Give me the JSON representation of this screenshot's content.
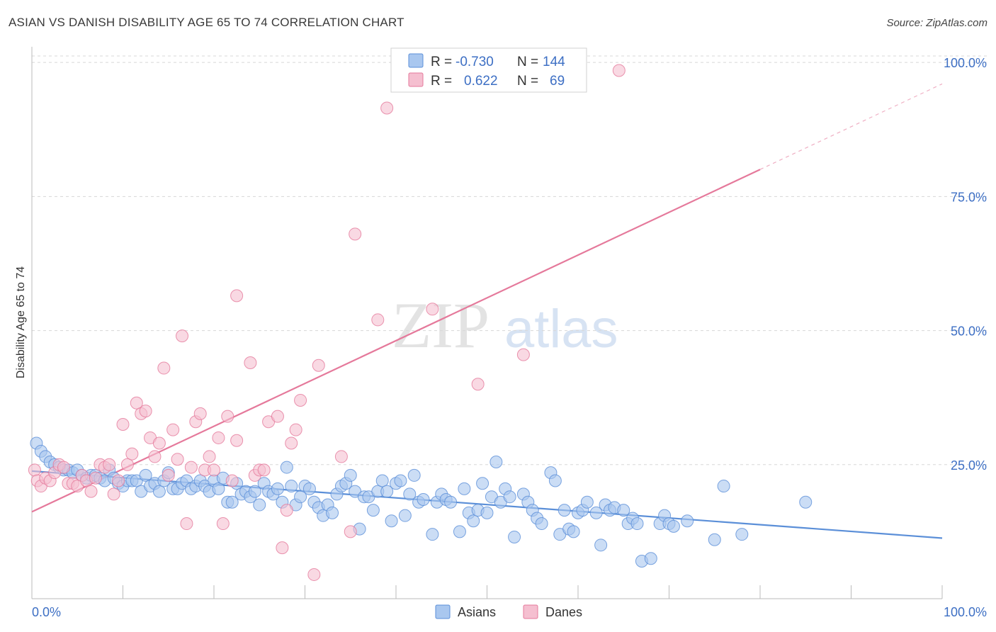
{
  "header": {
    "title": "ASIAN VS DANISH DISABILITY AGE 65 TO 74 CORRELATION CHART",
    "source": "Source: ZipAtlas.com"
  },
  "watermark": {
    "part1": "ZIP",
    "part2": "atlas"
  },
  "colors": {
    "asian": "#5b8fd8",
    "asian_fill": "#a9c7ef",
    "danish": "#e5799b",
    "danish_fill": "#f5bfd0",
    "value_text": "#3d6fc4",
    "grid": "#d8d8d8"
  },
  "legend_stats": {
    "rows": [
      {
        "r_label": "R =",
        "r_value": "-0.730",
        "n_label": "N =",
        "n_value": "144"
      },
      {
        "r_label": "R =",
        "r_value": "0.622",
        "n_label": "N =",
        "n_value": "69"
      }
    ]
  },
  "chart_data": {
    "type": "scatter",
    "title": "ASIAN VS DANISH DISABILITY AGE 65 TO 74 CORRELATION CHART",
    "xlabel": "",
    "ylabel": "Disability Age 65 to 74",
    "xlim": [
      0,
      100
    ],
    "ylim": [
      0,
      102
    ],
    "x_tick_labels": [
      "0.0%",
      "100.0%"
    ],
    "y_tick_labels": [
      "25.0%",
      "50.0%",
      "75.0%",
      "100.0%"
    ],
    "y_ticks": [
      25,
      50,
      75,
      100
    ],
    "grid": true,
    "legend_position": "bottom-center",
    "series": [
      {
        "name": "Asians",
        "r": -0.73,
        "n": 144,
        "trend": {
          "x0": 0,
          "y0": 23.8,
          "x1": 100,
          "y1": 11.3,
          "dashed_from": null
        },
        "points": [
          [
            0.5,
            29
          ],
          [
            1,
            27.5
          ],
          [
            1.5,
            26.5
          ],
          [
            2,
            25.5
          ],
          [
            2.5,
            25
          ],
          [
            3,
            24.5
          ],
          [
            3.5,
            24
          ],
          [
            4,
            24
          ],
          [
            4.5,
            23.5
          ],
          [
            5,
            24
          ],
          [
            5.5,
            23
          ],
          [
            6,
            22.5
          ],
          [
            6.5,
            23
          ],
          [
            7,
            23
          ],
          [
            7.5,
            22.5
          ],
          [
            8,
            22
          ],
          [
            8.5,
            24
          ],
          [
            9,
            22.5
          ],
          [
            9.5,
            21.5
          ],
          [
            10,
            21
          ],
          [
            10.5,
            22
          ],
          [
            11,
            22
          ],
          [
            11.5,
            22
          ],
          [
            12,
            20
          ],
          [
            12.5,
            23
          ],
          [
            13,
            21
          ],
          [
            13.5,
            21.5
          ],
          [
            14,
            20
          ],
          [
            14.5,
            22
          ],
          [
            15,
            23.5
          ],
          [
            15.5,
            20.5
          ],
          [
            16,
            20.5
          ],
          [
            16.5,
            21.5
          ],
          [
            17,
            22
          ],
          [
            17.5,
            20.5
          ],
          [
            18,
            21
          ],
          [
            18.5,
            22
          ],
          [
            19,
            21
          ],
          [
            19.5,
            20
          ],
          [
            20,
            22
          ],
          [
            20.5,
            20.5
          ],
          [
            21,
            22.5
          ],
          [
            21.5,
            18
          ],
          [
            22,
            18
          ],
          [
            22.5,
            21.5
          ],
          [
            23,
            19.5
          ],
          [
            23.5,
            20
          ],
          [
            24,
            19
          ],
          [
            24.5,
            20
          ],
          [
            25,
            17.5
          ],
          [
            25.5,
            21.5
          ],
          [
            26,
            20
          ],
          [
            26.5,
            19.5
          ],
          [
            27,
            20.5
          ],
          [
            27.5,
            18
          ],
          [
            28,
            24.5
          ],
          [
            28.5,
            21
          ],
          [
            29,
            17.5
          ],
          [
            29.5,
            19
          ],
          [
            30,
            21
          ],
          [
            30.5,
            20.5
          ],
          [
            31,
            18
          ],
          [
            31.5,
            17
          ],
          [
            32,
            15.5
          ],
          [
            32.5,
            17.5
          ],
          [
            33,
            16
          ],
          [
            33.5,
            19.5
          ],
          [
            34,
            21
          ],
          [
            34.5,
            21.5
          ],
          [
            35,
            23
          ],
          [
            35.5,
            20
          ],
          [
            36,
            13
          ],
          [
            36.5,
            19
          ],
          [
            37,
            19
          ],
          [
            37.5,
            16.5
          ],
          [
            38,
            20
          ],
          [
            38.5,
            22
          ],
          [
            39,
            20
          ],
          [
            39.5,
            14.5
          ],
          [
            40,
            21.5
          ],
          [
            40.5,
            22
          ],
          [
            41,
            15.5
          ],
          [
            41.5,
            19.5
          ],
          [
            42,
            23
          ],
          [
            42.5,
            18
          ],
          [
            43,
            18.5
          ],
          [
            44,
            12
          ],
          [
            44.5,
            18
          ],
          [
            45,
            19.5
          ],
          [
            45.5,
            18.5
          ],
          [
            46,
            18
          ],
          [
            47,
            12.5
          ],
          [
            47.5,
            20.5
          ],
          [
            48,
            16
          ],
          [
            48.5,
            14.5
          ],
          [
            49,
            16.5
          ],
          [
            49.5,
            21.5
          ],
          [
            50,
            16
          ],
          [
            50.5,
            19
          ],
          [
            51,
            25.5
          ],
          [
            51.5,
            18
          ],
          [
            52,
            20.5
          ],
          [
            52.5,
            19
          ],
          [
            53,
            11.5
          ],
          [
            54,
            19.5
          ],
          [
            54.5,
            18
          ],
          [
            55,
            16.5
          ],
          [
            55.5,
            15
          ],
          [
            56,
            14
          ],
          [
            57,
            23.5
          ],
          [
            57.5,
            22
          ],
          [
            58,
            12
          ],
          [
            58.5,
            16.5
          ],
          [
            59,
            13
          ],
          [
            59.5,
            12.5
          ],
          [
            60,
            16
          ],
          [
            60.5,
            16.5
          ],
          [
            61,
            18
          ],
          [
            62,
            16
          ],
          [
            62.5,
            10
          ],
          [
            63,
            17.5
          ],
          [
            63.5,
            16.5
          ],
          [
            64,
            17
          ],
          [
            65,
            16.5
          ],
          [
            65.5,
            14
          ],
          [
            66,
            15
          ],
          [
            66.5,
            14
          ],
          [
            67,
            7
          ],
          [
            68,
            7.5
          ],
          [
            69,
            14
          ],
          [
            69.5,
            15.5
          ],
          [
            70,
            14
          ],
          [
            70.5,
            13.5
          ],
          [
            72,
            14.5
          ],
          [
            75,
            11
          ],
          [
            76,
            21
          ],
          [
            78,
            12
          ],
          [
            85,
            18
          ]
        ]
      },
      {
        "name": "Danes",
        "r": 0.622,
        "n": 69,
        "trend": {
          "x0": 0,
          "y0": 16.2,
          "x1": 100,
          "y1": 96,
          "dashed_from": 80
        },
        "points": [
          [
            0.3,
            24
          ],
          [
            0.6,
            22
          ],
          [
            1,
            21
          ],
          [
            1.5,
            22.5
          ],
          [
            2,
            22
          ],
          [
            2.5,
            23.5
          ],
          [
            3,
            25
          ],
          [
            3.5,
            24.5
          ],
          [
            4,
            21.5
          ],
          [
            4.5,
            21.5
          ],
          [
            5,
            21
          ],
          [
            5.5,
            23
          ],
          [
            6,
            22
          ],
          [
            6.5,
            20
          ],
          [
            7,
            22.5
          ],
          [
            7.5,
            25
          ],
          [
            8,
            24.5
          ],
          [
            8.5,
            25
          ],
          [
            9,
            19.5
          ],
          [
            9.5,
            22
          ],
          [
            10,
            32.5
          ],
          [
            10.5,
            25
          ],
          [
            11,
            27
          ],
          [
            11.5,
            36.5
          ],
          [
            12,
            34.5
          ],
          [
            12.5,
            35
          ],
          [
            13,
            30
          ],
          [
            13.5,
            26.5
          ],
          [
            14,
            29
          ],
          [
            14.5,
            43
          ],
          [
            15,
            23
          ],
          [
            15.5,
            31.5
          ],
          [
            16,
            26
          ],
          [
            16.5,
            49
          ],
          [
            17,
            14
          ],
          [
            17.5,
            24.5
          ],
          [
            18,
            33
          ],
          [
            18.5,
            34.5
          ],
          [
            19,
            24
          ],
          [
            19.5,
            26.5
          ],
          [
            20,
            24
          ],
          [
            20.5,
            30
          ],
          [
            21,
            14
          ],
          [
            21.5,
            34
          ],
          [
            22,
            22
          ],
          [
            22.5,
            29.5
          ],
          [
            22.5,
            56.5
          ],
          [
            24,
            44
          ],
          [
            24.5,
            23
          ],
          [
            25,
            24
          ],
          [
            25.5,
            24
          ],
          [
            26,
            33
          ],
          [
            27,
            34
          ],
          [
            27.5,
            9.5
          ],
          [
            28,
            16.5
          ],
          [
            28.5,
            29
          ],
          [
            29,
            31.5
          ],
          [
            29.5,
            37
          ],
          [
            31,
            4.5
          ],
          [
            31.5,
            43.5
          ],
          [
            34,
            26.5
          ],
          [
            35,
            12.5
          ],
          [
            35.5,
            68
          ],
          [
            38,
            52
          ],
          [
            39,
            91.5
          ],
          [
            44,
            54
          ],
          [
            49,
            40
          ],
          [
            54,
            45.5
          ],
          [
            64.5,
            98.5
          ]
        ]
      }
    ]
  },
  "bottom_legend": {
    "items": [
      {
        "label": "Asians"
      },
      {
        "label": "Danes"
      }
    ]
  }
}
